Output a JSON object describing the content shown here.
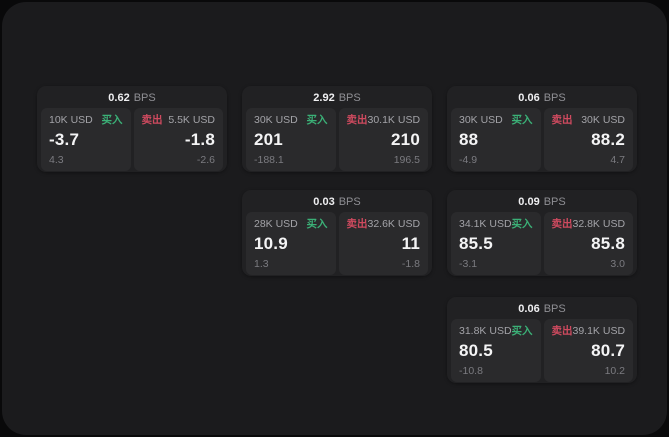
{
  "labels": {
    "bps_unit": "BPS",
    "buy": "买入",
    "sell": "卖出"
  },
  "colors": {
    "backdrop": "#09090a",
    "window_background": "#1b1b1d",
    "card_background": "#212123",
    "subpanel_background": "#2a2a2c",
    "buy_green": "#3bb077",
    "sell_red": "#cf4a5f",
    "primary_text": "#f4f4f5",
    "muted_text": "#a3a3a8",
    "faint_text": "#7b7b80"
  },
  "cards": [
    {
      "bps": "0.62",
      "col": 0,
      "row": 0,
      "buy": {
        "notional": "10K USD",
        "price": "-3.7",
        "delta": "4.3"
      },
      "sell": {
        "notional": "5.5K USD",
        "price": "-1.8",
        "delta": "-2.6"
      }
    },
    {
      "bps": "2.92",
      "col": 1,
      "row": 0,
      "buy": {
        "notional": "30K USD",
        "price": "201",
        "delta": "-188.1"
      },
      "sell": {
        "notional": "30.1K USD",
        "price": "210",
        "delta": "196.5"
      }
    },
    {
      "bps": "0.06",
      "col": 2,
      "row": 0,
      "buy": {
        "notional": "30K USD",
        "price": "88",
        "delta": "-4.9"
      },
      "sell": {
        "notional": "30K USD",
        "price": "88.2",
        "delta": "4.7"
      }
    },
    {
      "bps": "0.03",
      "col": 1,
      "row": 1,
      "buy": {
        "notional": "28K USD",
        "price": "10.9",
        "delta": "1.3"
      },
      "sell": {
        "notional": "32.6K USD",
        "price": "11",
        "delta": "-1.8"
      }
    },
    {
      "bps": "0.09",
      "col": 2,
      "row": 1,
      "buy": {
        "notional": "34.1K USD",
        "price": "85.5",
        "delta": "-3.1"
      },
      "sell": {
        "notional": "32.8K USD",
        "price": "85.8",
        "delta": "3.0"
      }
    },
    {
      "bps": "0.06",
      "col": 2,
      "row": 2,
      "buy": {
        "notional": "31.8K USD",
        "price": "80.5",
        "delta": "-10.8"
      },
      "sell": {
        "notional": "39.1K USD",
        "price": "80.7",
        "delta": "10.2"
      }
    }
  ]
}
